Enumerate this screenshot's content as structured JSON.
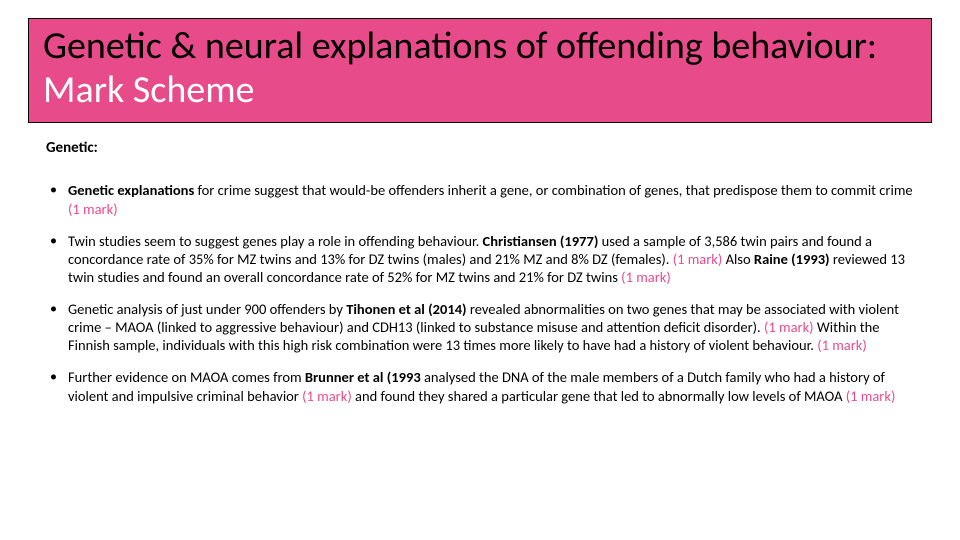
{
  "colors": {
    "accent": "#e84b8a",
    "background": "#ffffff",
    "text": "#000000",
    "title_border": "#000000"
  },
  "typography": {
    "title_fontsize": 38,
    "body_fontsize": 14.5,
    "subheading_fontsize": 15,
    "font_family": "Calibri"
  },
  "title": {
    "part1": "Genetic & neural explanations of offending behaviour:  ",
    "part2": "Mark Scheme"
  },
  "subheading": "Genetic:",
  "mark_label": "(1 mark)",
  "bullets": [
    {
      "segments": [
        {
          "text": "Genetic explanations",
          "bold": true
        },
        {
          "text": " for crime suggest that would-be offenders inherit a gene, or combination of genes, that predispose them to commit crime "
        },
        {
          "text": "(1 mark)",
          "mark": true
        }
      ]
    },
    {
      "segments": [
        {
          "text": "Twin studies seem to suggest genes play a role in offending behaviour. "
        },
        {
          "text": "Christiansen (1977)",
          "bold": true
        },
        {
          "text": " used a sample of 3,586 twin pairs and found a concordance rate of 35% for MZ twins and 13% for DZ twins (males) and 21% MZ and 8% DZ (females). "
        },
        {
          "text": "(1 mark)",
          "mark": true
        },
        {
          "text": "  Also "
        },
        {
          "text": "Raine (1993)",
          "bold": true
        },
        {
          "text": " reviewed 13 twin studies and found an overall concordance rate of 52% for MZ twins and 21% for DZ twins  "
        },
        {
          "text": "(1 mark)",
          "mark": true
        }
      ]
    },
    {
      "segments": [
        {
          "text": "Genetic analysis of just under 900 offenders by "
        },
        {
          "text": "Tihonen et al (2014)",
          "bold": true
        },
        {
          "text": " revealed abnormalities on two genes that may be associated with violent crime – MAOA (linked to aggressive behaviour) and CDH13 (linked to substance misuse and attention deficit disorder). "
        },
        {
          "text": "(1 mark)",
          "mark": true
        },
        {
          "text": "  Within the Finnish sample, individuals with this high risk combination were 13 times more likely to have had a history of violent behaviour. "
        },
        {
          "text": "(1 mark)",
          "mark": true
        }
      ]
    },
    {
      "segments": [
        {
          "text": "Further evidence on MAOA comes from "
        },
        {
          "text": "Brunner et al (1993",
          "bold": true
        },
        {
          "text": " analysed the DNA of the male members of a Dutch family who had a history of violent and impulsive criminal behavior "
        },
        {
          "text": "(1 mark)",
          "mark": true
        },
        {
          "text": " and found they shared a particular gene that led to abnormally low levels of MAOA "
        },
        {
          "text": "(1 mark)",
          "mark": true
        }
      ]
    }
  ]
}
